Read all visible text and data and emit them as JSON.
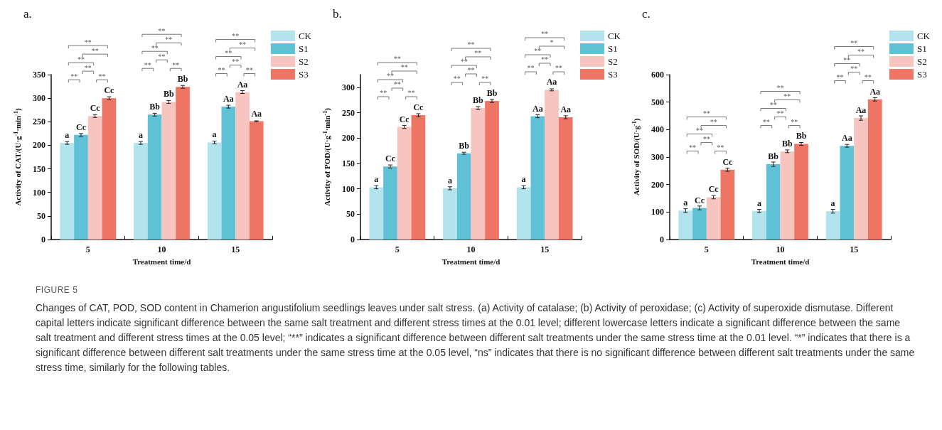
{
  "chart_data": [
    {
      "type": "bar",
      "title": "a.",
      "xlabel": "Treatment time/d",
      "ylabel": "Activity of CAT/(U·g$^{-1}$·min$^{-1}$)",
      "categories": [
        "5",
        "10",
        "15"
      ],
      "ylim": [
        0,
        350
      ],
      "yticks": [
        0,
        50,
        100,
        150,
        200,
        250,
        300,
        350
      ],
      "grid": false,
      "legend": "top right",
      "series": [
        {
          "name": "CK",
          "color": "#b3e3ec",
          "values": [
            205,
            205,
            206
          ],
          "errors": [
            3,
            3,
            3
          ],
          "value_labels": [
            "a",
            "a",
            "a"
          ]
        },
        {
          "name": "S1",
          "color": "#5fc1d6",
          "values": [
            222,
            265,
            282
          ],
          "errors": [
            3,
            3,
            3
          ],
          "value_labels": [
            "Cc",
            "Bb",
            "Aa"
          ]
        },
        {
          "name": "S2",
          "color": "#f7c4bf",
          "values": [
            262,
            292,
            313
          ],
          "errors": [
            3,
            3,
            3
          ],
          "value_labels": [
            "Cc",
            "Bb",
            "Aa"
          ]
        },
        {
          "name": "S3",
          "color": "#ee7563",
          "values": [
            300,
            324,
            251
          ],
          "errors": [
            3,
            3,
            1
          ],
          "value_labels": [
            "Cc",
            "Bb",
            "Aa"
          ]
        }
      ],
      "annotations": [
        "**",
        "**",
        "**",
        "**",
        "**",
        "**",
        "**",
        "**",
        "**",
        "**",
        "**",
        "**",
        "**",
        "**",
        "**",
        "**",
        "**",
        "**"
      ]
    },
    {
      "type": "bar",
      "title": "b.",
      "xlabel": "Treatment time/d",
      "ylabel": "Activity of POD/(U·g$^{-1}$·min$^{-1}$)",
      "categories": [
        "5",
        "10",
        "15"
      ],
      "ylim": [
        0,
        325
      ],
      "yticks": [
        0,
        50,
        100,
        150,
        200,
        250,
        300
      ],
      "grid": false,
      "legend": "top right",
      "series": [
        {
          "name": "CK",
          "color": "#b3e3ec",
          "values": [
            103,
            101,
            103
          ],
          "errors": [
            3,
            3,
            3
          ],
          "value_labels": [
            "a",
            "a",
            "a"
          ]
        },
        {
          "name": "S1",
          "color": "#5fc1d6",
          "values": [
            144,
            170,
            243
          ],
          "errors": [
            3,
            2,
            3
          ],
          "value_labels": [
            "Cc",
            "Bb",
            "Aa"
          ]
        },
        {
          "name": "S2",
          "color": "#f7c4bf",
          "values": [
            222,
            259,
            295
          ],
          "errors": [
            3,
            3,
            2
          ],
          "value_labels": [
            "Cc",
            "Bb",
            "Aa"
          ]
        },
        {
          "name": "S3",
          "color": "#ee7563",
          "values": [
            245,
            273,
            241
          ],
          "errors": [
            3,
            3,
            3
          ],
          "value_labels": [
            "Cc",
            "Bb",
            "Aa"
          ]
        }
      ],
      "annotations": [
        "**",
        "**",
        "**",
        "**",
        "**",
        "**",
        "**",
        "**",
        "**",
        "**",
        "**",
        "**",
        "**",
        "**",
        "**",
        "**",
        "*",
        "**"
      ]
    },
    {
      "type": "bar",
      "title": "c.",
      "xlabel": "Treatment time/d",
      "ylabel": "Activity of SOD/(U·g$^{-1}$)",
      "categories": [
        "5",
        "10",
        "15"
      ],
      "ylim": [
        0,
        600
      ],
      "yticks": [
        0,
        100,
        200,
        300,
        400,
        500,
        600
      ],
      "grid": false,
      "legend": "top right",
      "series": [
        {
          "name": "CK",
          "color": "#b3e3ec",
          "values": [
            105,
            104,
            103
          ],
          "errors": [
            7,
            6,
            7
          ],
          "value_labels": [
            "a",
            "a",
            "a"
          ]
        },
        {
          "name": "S1",
          "color": "#5fc1d6",
          "values": [
            115,
            274,
            341
          ],
          "errors": [
            7,
            8,
            5
          ],
          "value_labels": [
            "Cc",
            "Bb",
            "Aa"
          ]
        },
        {
          "name": "S2",
          "color": "#f7c4bf",
          "values": [
            154,
            321,
            442
          ],
          "errors": [
            6,
            5,
            8
          ],
          "value_labels": [
            "Cc",
            "Bb",
            "Aa"
          ]
        },
        {
          "name": "S3",
          "color": "#ee7563",
          "values": [
            254,
            348,
            510
          ],
          "errors": [
            6,
            5,
            6
          ],
          "value_labels": [
            "Cc",
            "Bb",
            "Aa"
          ]
        }
      ],
      "annotations": [
        "**",
        "**",
        "**",
        "**",
        "**",
        "**",
        "**",
        "**",
        "**",
        "**",
        "**",
        "**",
        "**",
        "**",
        "**",
        "**",
        "**",
        "**"
      ]
    },
    {
      "type": "other",
      "title": "FIGURE 5",
      "annotations": [
        "Changes of CAT, POD, SOD content in Chamerion angustifolium seedlings leaves under salt stress. (a) Activity of catalase; (b) Activity of peroxidase; (c) Activity of superoxide dismutase. Different capital letters indicate significant difference between the same salt treatment and different stress times at the 0.01 level; different lowercase letters indicate a significant difference between the same salt treatment and different stress times at the 0.05 level; “**” indicates a significant difference between different salt treatments under the same stress time at the 0.01 level. “*” indicates that there is a significant difference between different salt treatments under the same stress time at the 0.05 level, “ns” indicates that there is no significant difference between different salt treatments under the same stress time, similarly for the following tables."
      ]
    }
  ]
}
